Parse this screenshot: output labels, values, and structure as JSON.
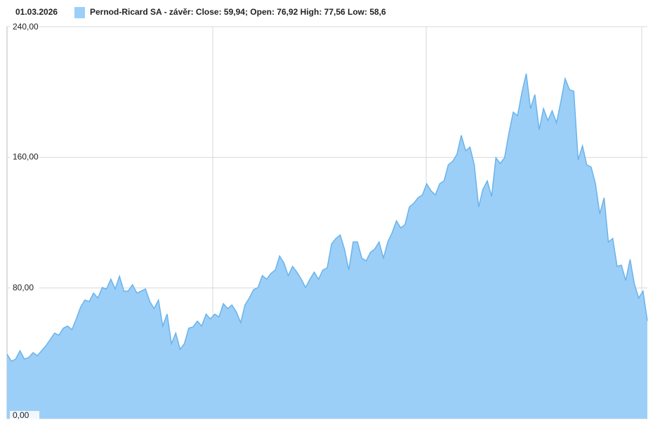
{
  "chart_data": {
    "type": "area",
    "date": "01.03.2026",
    "series": [
      {
        "name": "Pernod-Ricard SA - závěr: Close: 59,94; Open: 76,92 High: 77,56 Low: 58,6",
        "color": "#9bcff8",
        "line_color": "#6bb3ea",
        "values": [
          39.5,
          35.2,
          36.5,
          41.6,
          36.5,
          37.4,
          40.4,
          38.6,
          41.6,
          44.7,
          48.5,
          52.4,
          51.1,
          55.4,
          56.7,
          54.5,
          61.0,
          68.3,
          72.6,
          71.7,
          76.9,
          73.9,
          80.3,
          79.4,
          85.4,
          79.4,
          87.2,
          78.1,
          78.1,
          82.0,
          76.9,
          78.1,
          79.4,
          71.7,
          67.4,
          72.6,
          56.7,
          64.0,
          45.9,
          52.4,
          42.5,
          45.9,
          55.4,
          56.2,
          59.7,
          56.7,
          64.0,
          61.0,
          64.0,
          62.3,
          70.4,
          67.4,
          69.6,
          65.3,
          58.8,
          69.6,
          73.9,
          79.0,
          80.3,
          87.6,
          85.4,
          88.9,
          91.0,
          99.6,
          95.3,
          87.6,
          93.2,
          89.7,
          85.4,
          80.3,
          85.4,
          89.7,
          85.4,
          91.0,
          92.3,
          106.9,
          110.3,
          112.5,
          103.9,
          91.0,
          108.2,
          108.2,
          98.3,
          96.6,
          101.8,
          103.9,
          108.2,
          98.3,
          108.2,
          113.8,
          121.1,
          116.8,
          118.9,
          129.7,
          131.8,
          135.3,
          137.0,
          143.8,
          139.5,
          137.0,
          143.8,
          145.6,
          155.4,
          157.6,
          161.9,
          173.5,
          164.0,
          166.2,
          155.4,
          129.7,
          140.4,
          145.6,
          136.1,
          159.7,
          156.3,
          159.7,
          174.8,
          187.6,
          185.5,
          199.7,
          211.2,
          189.8,
          198.4,
          176.9,
          189.8,
          182.5,
          188.5,
          181.2,
          194.1,
          208.2,
          201.4,
          200.5,
          158.4,
          167.0,
          155.4,
          154.1,
          143.8,
          125.4,
          135.3,
          108.2,
          110.3,
          93.2,
          94.0,
          84.6,
          97.5,
          82.4,
          73.9,
          78.1,
          59.9
        ]
      }
    ],
    "ylim": [
      0,
      240
    ],
    "yticks": [
      {
        "value": 0,
        "label": "0,00"
      },
      {
        "value": 80,
        "label": "80,00"
      },
      {
        "value": 160,
        "label": "160,00"
      },
      {
        "value": 240,
        "label": "240,00"
      }
    ],
    "grid": true
  }
}
